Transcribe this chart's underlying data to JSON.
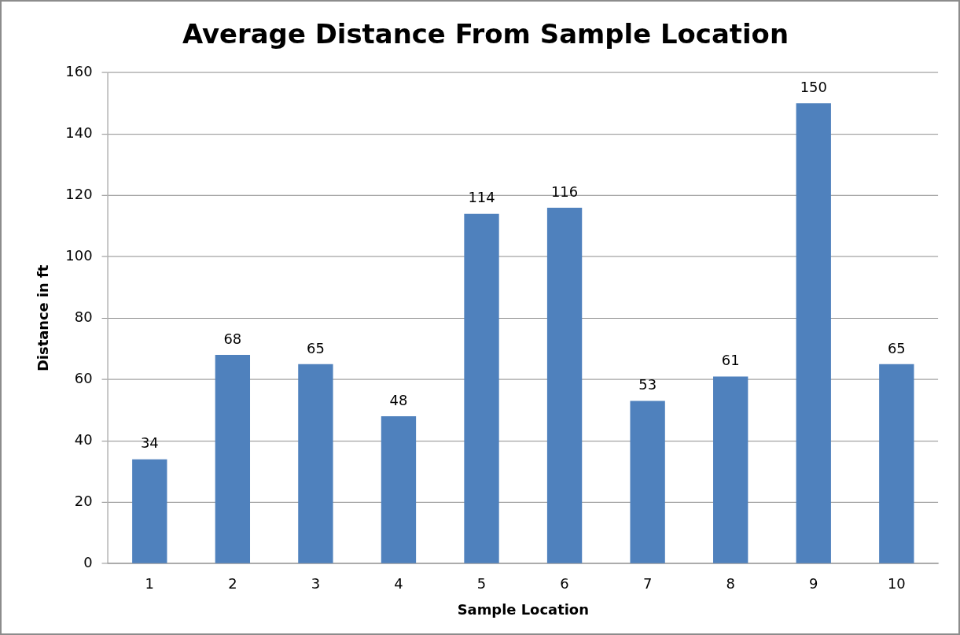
{
  "chart_data": {
    "type": "bar",
    "title": "Average Distance From Sample Location",
    "xlabel": "Sample Location",
    "ylabel": "Distance in ft",
    "categories": [
      "1",
      "2",
      "3",
      "4",
      "5",
      "6",
      "7",
      "8",
      "9",
      "10"
    ],
    "values": [
      34,
      68,
      65,
      48,
      114,
      116,
      53,
      61,
      150,
      65
    ],
    "color": "#4f81bd",
    "ylim": [
      0,
      160
    ],
    "yticks": [
      0,
      20,
      40,
      60,
      80,
      100,
      120,
      140,
      160
    ],
    "grid": "y",
    "data_labels": true,
    "legend": false
  }
}
